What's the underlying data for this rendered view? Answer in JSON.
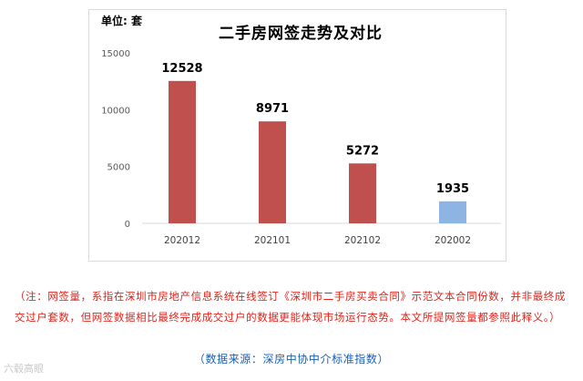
{
  "chart_data": {
    "type": "bar",
    "title": "二手房网签走势及对比",
    "unit_label": "单位: 套",
    "categories": [
      "202012",
      "202101",
      "202102",
      "202002"
    ],
    "values": [
      12528,
      8971,
      5272,
      1935
    ],
    "data_labels": [
      "12528",
      "8971",
      "5272",
      "1935"
    ],
    "yticks": [
      "15000",
      "10000",
      "5000",
      "0"
    ],
    "ylim": [
      0,
      15000
    ],
    "bar_colors": [
      "#c0504d",
      "#c0504d",
      "#c0504d",
      "#8db4e2"
    ],
    "grid": false
  },
  "note": "（注：网签量，系指在深圳市房地产信息系统在线签订《深圳市二手房买卖合同》示范文本合同份数，并非最终成交过户套数，但网签数据相比最终完成成交过户的数据更能体现市场运行态势。本文所提网签量都参照此释义。）",
  "source": "（数据来源：深房中协中介标准指数）",
  "watermark": "六毂高眼"
}
